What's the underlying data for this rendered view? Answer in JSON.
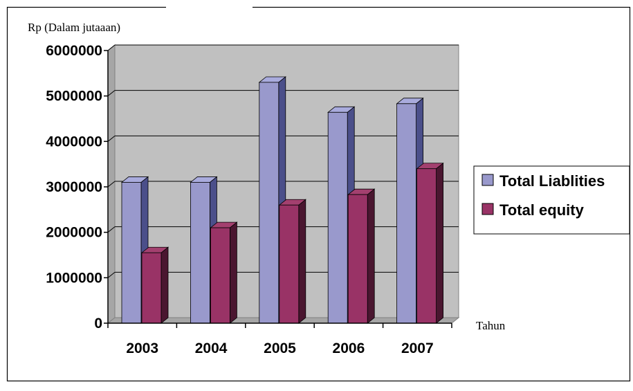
{
  "chart_data": {
    "type": "bar",
    "title": "",
    "ylabel": "Rp (Dalam jutaaan)",
    "xlabel": "Tahun",
    "categories": [
      "2003",
      "2004",
      "2005",
      "2006",
      "2007"
    ],
    "series": [
      {
        "name": "Total Liablities",
        "values": [
          3100000,
          3100000,
          5300000,
          4640000,
          4830000
        ],
        "color": "#9999cc",
        "side_color": "#4b4f8a",
        "top_color": "#a9abdd"
      },
      {
        "name": "Total equity",
        "values": [
          1550000,
          2100000,
          2600000,
          2830000,
          3400000
        ],
        "color": "#993366",
        "side_color": "#4a1630",
        "top_color": "#a3406f"
      }
    ],
    "ylim": [
      0,
      6000000
    ],
    "yticks": [
      "0",
      "1000000",
      "2000000",
      "3000000",
      "4000000",
      "5000000",
      "6000000"
    ],
    "grid": true,
    "legend_position": "right",
    "plot_background": "#c0c0c0",
    "floor_color": "#a6a6a6"
  }
}
